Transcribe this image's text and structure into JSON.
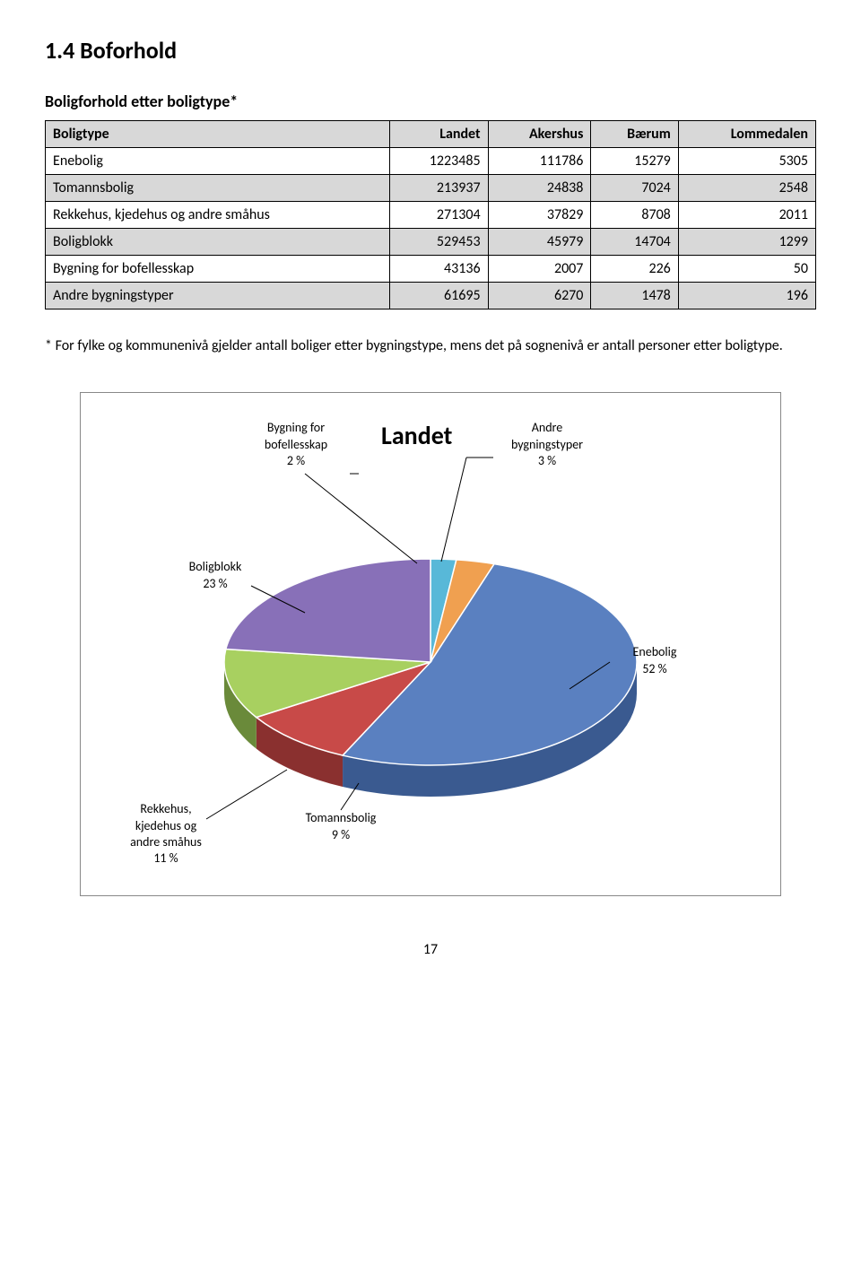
{
  "heading": "1.4 Boforhold",
  "subtitle": "Boligforhold etter boligtype*",
  "table": {
    "columns": [
      "Boligtype",
      "Landet",
      "Akershus",
      "Bærum",
      "Lommedalen"
    ],
    "rows": [
      {
        "label": "Enebolig",
        "values": [
          "1223485",
          "111786",
          "15279",
          "5305"
        ],
        "alt": false
      },
      {
        "label": "Tomannsbolig",
        "values": [
          "213937",
          "24838",
          "7024",
          "2548"
        ],
        "alt": true
      },
      {
        "label": "Rekkehus, kjedehus og andre småhus",
        "values": [
          "271304",
          "37829",
          "8708",
          "2011"
        ],
        "alt": false
      },
      {
        "label": "Boligblokk",
        "values": [
          "529453",
          "45979",
          "14704",
          "1299"
        ],
        "alt": true
      },
      {
        "label": "Bygning for bofellesskap",
        "values": [
          "43136",
          "2007",
          "226",
          "50"
        ],
        "alt": false
      },
      {
        "label": "Andre bygningstyper",
        "values": [
          "61695",
          "6270",
          "1478",
          "196"
        ],
        "alt": true
      }
    ]
  },
  "footnote": "* For fylke og kommunenivå gjelder antall boliger etter bygningstype, mens det på sognenivå er antall personer etter boligtype.",
  "chart": {
    "title": "Landet",
    "labels": {
      "bofellesskap": "Bygning for bofellesskap 2 %",
      "andre": "Andre bygningstyper 3 %",
      "boligblokk": "Boligblokk 23 %",
      "enebolig": "Enebolig 52 %",
      "rekkehus": "Rekkehus, kjedehus og andre småhus 11 %",
      "tomannsbolig": "Tomannsbolig 9 %"
    },
    "slices": [
      {
        "name": "Enebolig",
        "pct": 52,
        "color": "#5a80c0",
        "side": "#3a5a90"
      },
      {
        "name": "Tomannsbolig",
        "pct": 9,
        "color": "#c84a48",
        "side": "#8a302f"
      },
      {
        "name": "Rekkehus",
        "pct": 11,
        "color": "#a8d060",
        "side": "#6a8a3a"
      },
      {
        "name": "Boligblokk",
        "pct": 23,
        "color": "#8870b8",
        "side": "#5a4a80"
      },
      {
        "name": "Bofellesskap",
        "pct": 2,
        "color": "#58b8d8",
        "side": "#388aa0"
      },
      {
        "name": "Andre",
        "pct": 3,
        "color": "#f0a050",
        "side": "#b87030"
      }
    ],
    "background": "#ffffff",
    "border": "#888888"
  },
  "page_number": "17"
}
